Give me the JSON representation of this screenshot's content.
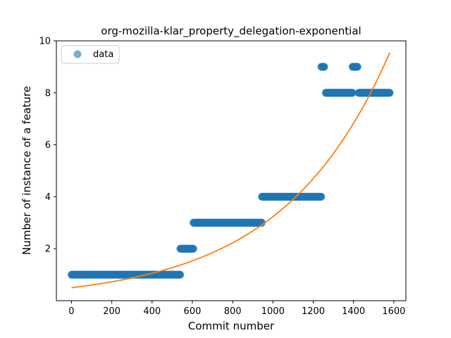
{
  "chart_data": {
    "type": "scatter",
    "title": "org-mozilla-klar_property_delegation-exponential",
    "xlabel": "Commit number",
    "ylabel": "Number of instance of a feature",
    "xlim": [
      -75,
      1660
    ],
    "ylim": [
      0,
      10
    ],
    "x_ticks": [
      0,
      200,
      400,
      600,
      800,
      1000,
      1200,
      1400,
      1600
    ],
    "y_ticks": [
      2,
      4,
      6,
      8,
      10
    ],
    "legend": {
      "position": "top-left",
      "entries": [
        "data"
      ]
    },
    "series": [
      {
        "name": "data",
        "kind": "scatter",
        "color": "#1f77b4",
        "segments": [
          {
            "x_start": 0,
            "x_end": 540,
            "y": 1
          },
          {
            "x_start": 540,
            "x_end": 605,
            "y": 2
          },
          {
            "x_start": 605,
            "x_end": 945,
            "y": 3
          },
          {
            "x_start": 945,
            "x_end": 1240,
            "y": 4
          },
          {
            "x_start": 1240,
            "x_end": 1255,
            "y": 9
          },
          {
            "x_start": 1262,
            "x_end": 1395,
            "y": 8
          },
          {
            "x_start": 1395,
            "x_end": 1420,
            "y": 9
          },
          {
            "x_start": 1425,
            "x_end": 1580,
            "y": 8
          }
        ]
      },
      {
        "kind": "line",
        "color": "#ff7f0e",
        "x_start": 0,
        "x_end": 1580,
        "y_start": 0.5,
        "y_end": 9.55
      }
    ]
  }
}
